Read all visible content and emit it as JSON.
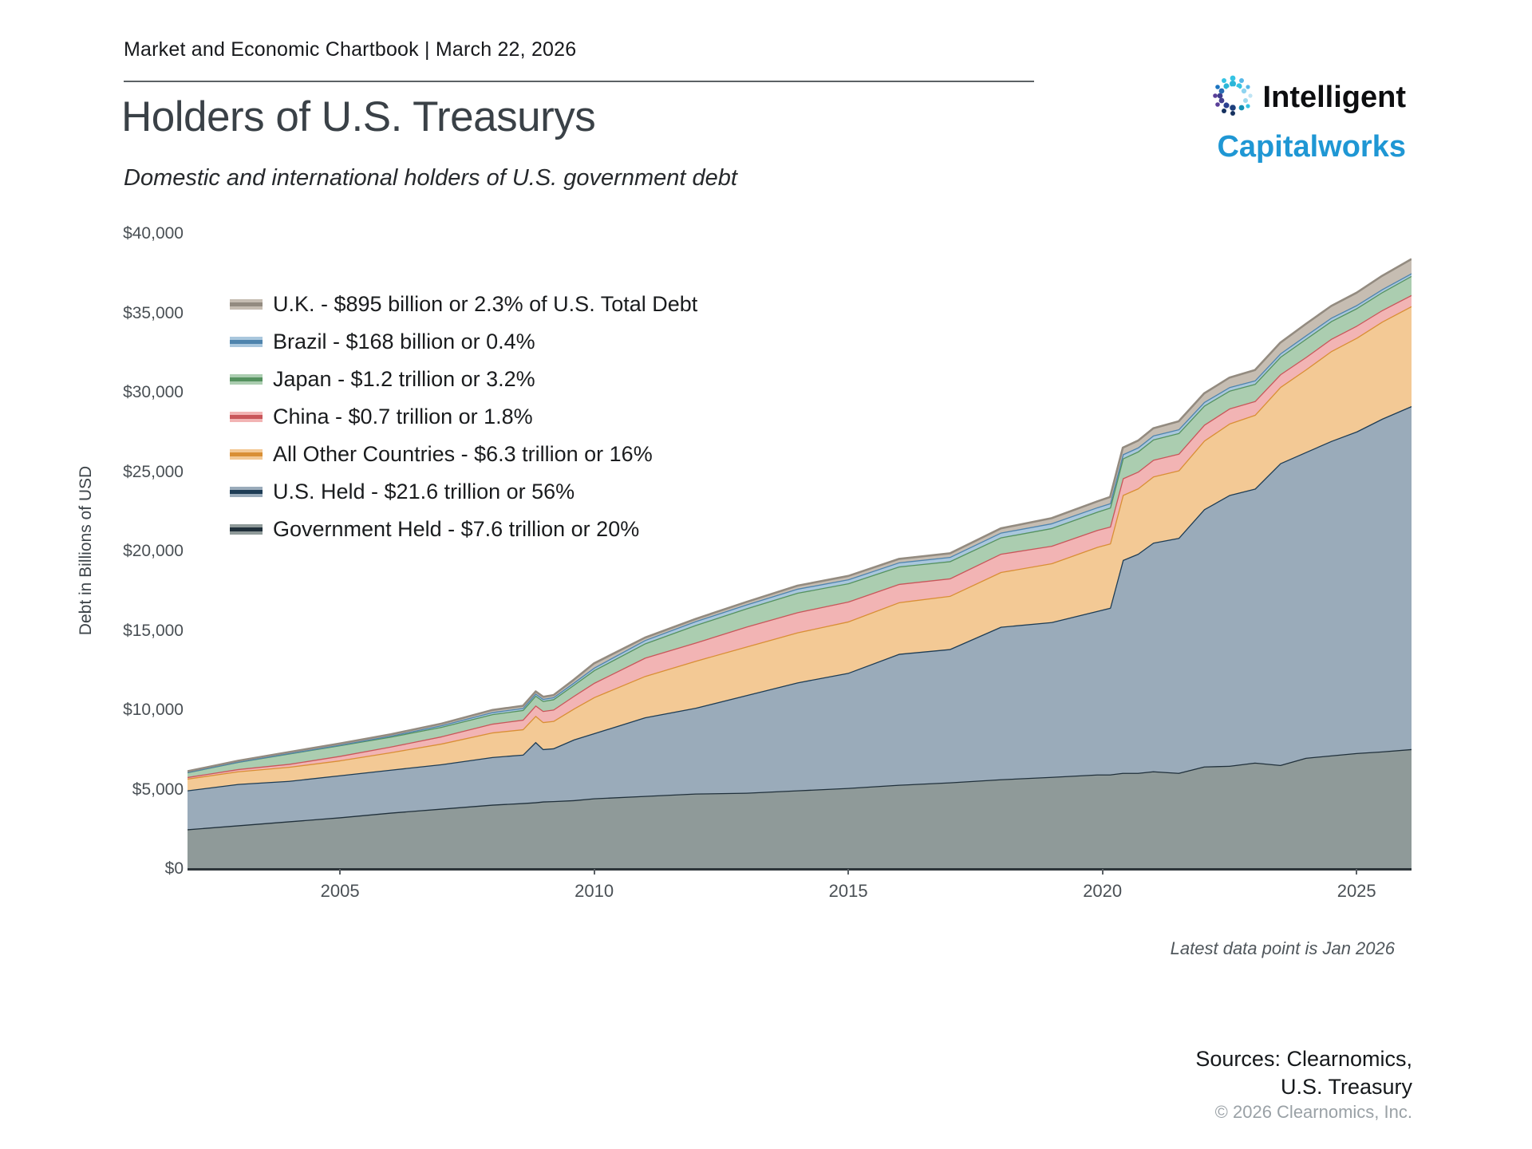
{
  "header": {
    "eyebrow": "Market and Economic Chartbook | March 22, 2026"
  },
  "logo": {
    "line1": "Intelligent",
    "line2": "Capitalworks",
    "accent_color": "#1f97d4"
  },
  "title": "Holders of U.S. Treasurys",
  "subtitle": "Domestic and international holders of U.S. government debt",
  "footnote": "Latest data point is Jan 2026",
  "sources": {
    "line1": "Sources: Clearnomics,",
    "line2": "U.S. Treasury",
    "copyright": "© 2026 Clearnomics, Inc."
  },
  "legend": {
    "items": [
      {
        "series": "uk",
        "label": "U.K. - $895 billion or 2.3% of U.S. Total Debt"
      },
      {
        "series": "brazil",
        "label": "Brazil - $168 billion or 0.4%"
      },
      {
        "series": "japan",
        "label": "Japan - $1.2 trillion or 3.2%"
      },
      {
        "series": "china",
        "label": "China - $0.7 trillion or 1.8%"
      },
      {
        "series": "all_other",
        "label": "All Other Countries - $6.3 trillion or 16%"
      },
      {
        "series": "us_held",
        "label": "U.S. Held - $21.6 trillion or 56%"
      },
      {
        "series": "government",
        "label": "Government Held - $7.6 trillion or 20%"
      }
    ]
  },
  "chart_data": {
    "type": "area",
    "stacked": true,
    "title": "Holders of U.S. Treasurys",
    "subtitle": "Domestic and international holders of U.S. government debt",
    "xlabel": "",
    "ylabel": "Debt in Billions of USD",
    "units": "billions of USD",
    "xlim": [
      2002.0,
      2026.08
    ],
    "ylim": [
      0,
      40000
    ],
    "grid": false,
    "legend_position": "upper-left-inside",
    "y_ticks": [
      {
        "value": 0,
        "label": "$0"
      },
      {
        "value": 5000,
        "label": "$5,000"
      },
      {
        "value": 10000,
        "label": "$10,000"
      },
      {
        "value": 15000,
        "label": "$15,000"
      },
      {
        "value": 20000,
        "label": "$20,000"
      },
      {
        "value": 25000,
        "label": "$25,000"
      },
      {
        "value": 30000,
        "label": "$30,000"
      },
      {
        "value": 35000,
        "label": "$35,000"
      },
      {
        "value": 40000,
        "label": "$40,000"
      }
    ],
    "x_ticks": [
      {
        "value": 2005,
        "label": "2005"
      },
      {
        "value": 2010,
        "label": "2010"
      },
      {
        "value": 2015,
        "label": "2015"
      },
      {
        "value": 2020,
        "label": "2020"
      },
      {
        "value": 2025,
        "label": "2025"
      }
    ],
    "x": [
      2002.0,
      2003,
      2004,
      2005,
      2006,
      2007,
      2008,
      2008.6,
      2008.85,
      2009.0,
      2009.2,
      2009.6,
      2010,
      2011,
      2012,
      2013,
      2014,
      2015,
      2016,
      2017,
      2018,
      2019,
      2019.9,
      2020.15,
      2020.4,
      2020.7,
      2021,
      2021.5,
      2022,
      2022.5,
      2023,
      2023.5,
      2024,
      2024.5,
      2025,
      2025.5,
      2026.08
    ],
    "series": [
      {
        "key": "government",
        "name": "Government Held",
        "latest": "$7.6 trillion or 20%",
        "fill": "#8f9a99",
        "line": "#20303b",
        "values": [
          2550,
          2800,
          3050,
          3300,
          3600,
          3850,
          4100,
          4200,
          4250,
          4300,
          4320,
          4380,
          4500,
          4650,
          4800,
          4850,
          5000,
          5150,
          5350,
          5500,
          5700,
          5850,
          6000,
          6000,
          6100,
          6100,
          6200,
          6100,
          6500,
          6550,
          6750,
          6600,
          7050,
          7200,
          7350,
          7450,
          7600
        ]
      },
      {
        "key": "us_held",
        "name": "U.S. Held",
        "latest": "$21.6 trillion or 56%",
        "fill": "#9aabba",
        "line": "#1d3c55",
        "values": [
          2450,
          2600,
          2550,
          2650,
          2700,
          2800,
          3000,
          3050,
          3800,
          3300,
          3330,
          3820,
          4100,
          4950,
          5400,
          6150,
          6800,
          7250,
          8250,
          8400,
          9600,
          9750,
          10300,
          10500,
          13400,
          13800,
          14400,
          14800,
          16200,
          17050,
          17250,
          19000,
          19250,
          19800,
          20250,
          20950,
          21600
        ]
      },
      {
        "key": "all_other",
        "name": "All Other Countries",
        "latest": "$6.3 trillion or 16%",
        "fill": "#f3c995",
        "line": "#d98f35",
        "values": [
          740,
          800,
          880,
          940,
          1100,
          1300,
          1550,
          1600,
          1650,
          1700,
          1720,
          1950,
          2270,
          2600,
          2960,
          3060,
          3150,
          3240,
          3250,
          3350,
          3450,
          3700,
          4030,
          4050,
          4100,
          4120,
          4170,
          4250,
          4320,
          4500,
          4650,
          4800,
          5200,
          5660,
          5900,
          6120,
          6300
        ]
      },
      {
        "key": "china",
        "name": "China",
        "latest": "$0.7 trillion or 1.8%",
        "fill": "#f2b4b4",
        "line": "#c9565a",
        "values": [
          100,
          140,
          190,
          280,
          360,
          450,
          550,
          600,
          650,
          700,
          720,
          800,
          900,
          1150,
          1150,
          1250,
          1270,
          1250,
          1150,
          1100,
          1150,
          1100,
          1070,
          1060,
          1050,
          1050,
          1050,
          1050,
          1000,
          950,
          870,
          800,
          780,
          770,
          760,
          720,
          700
        ]
      },
      {
        "key": "japan",
        "name": "Japan",
        "latest": "$1.2 trillion or 3.2%",
        "fill": "#abcdb0",
        "line": "#55925f",
        "values": [
          300,
          450,
          650,
          670,
          620,
          600,
          600,
          610,
          620,
          630,
          650,
          700,
          800,
          900,
          1100,
          1150,
          1220,
          1150,
          1100,
          1080,
          1030,
          1120,
          1150,
          1200,
          1250,
          1270,
          1280,
          1300,
          1200,
          1120,
          1080,
          1100,
          1150,
          1120,
          1100,
          1130,
          1200
        ]
      },
      {
        "key": "brazil",
        "name": "Brazil",
        "latest": "$168 billion or 0.4%",
        "fill": "#a9c7dd",
        "line": "#4e84ad",
        "values": [
          10,
          12,
          20,
          30,
          60,
          100,
          130,
          130,
          130,
          130,
          130,
          140,
          160,
          210,
          250,
          250,
          260,
          250,
          260,
          270,
          300,
          300,
          280,
          270,
          260,
          255,
          250,
          240,
          230,
          225,
          220,
          215,
          220,
          215,
          200,
          190,
          168
        ]
      },
      {
        "key": "uk",
        "name": "U.K.",
        "latest": "$895 billion or 2.3% of U.S. Total Debt",
        "fill": "#c6bdb2",
        "line": "#938b80",
        "values": [
          50,
          60,
          70,
          80,
          90,
          100,
          130,
          130,
          130,
          130,
          130,
          180,
          270,
          160,
          140,
          160,
          190,
          210,
          220,
          230,
          270,
          320,
          370,
          390,
          420,
          430,
          450,
          500,
          550,
          600,
          650,
          680,
          720,
          740,
          780,
          840,
          895
        ]
      }
    ]
  }
}
